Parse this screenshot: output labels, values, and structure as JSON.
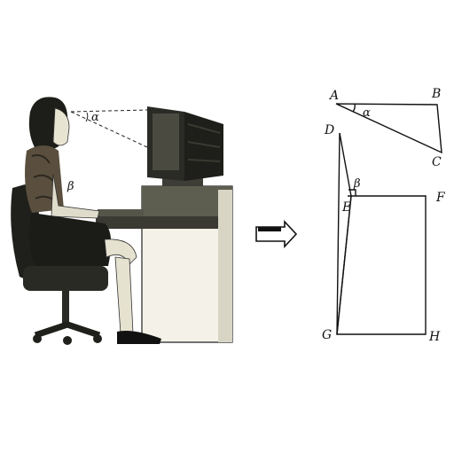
{
  "photo": {
    "angle_alpha_label": "α",
    "angle_beta_label": "β"
  },
  "diagram": {
    "points": {
      "A": "A",
      "B": "B",
      "C": "C",
      "D": "D",
      "E": "E",
      "F": "F",
      "G": "G",
      "H": "H"
    },
    "angle_alpha_label": "α",
    "angle_beta_label": "β"
  },
  "colors": {
    "ink": "#111111",
    "paper": "#ffffff",
    "photo_shadow": "#2a2a2a",
    "photo_mid": "#8a8a72",
    "photo_light": "#e9e6d6"
  }
}
